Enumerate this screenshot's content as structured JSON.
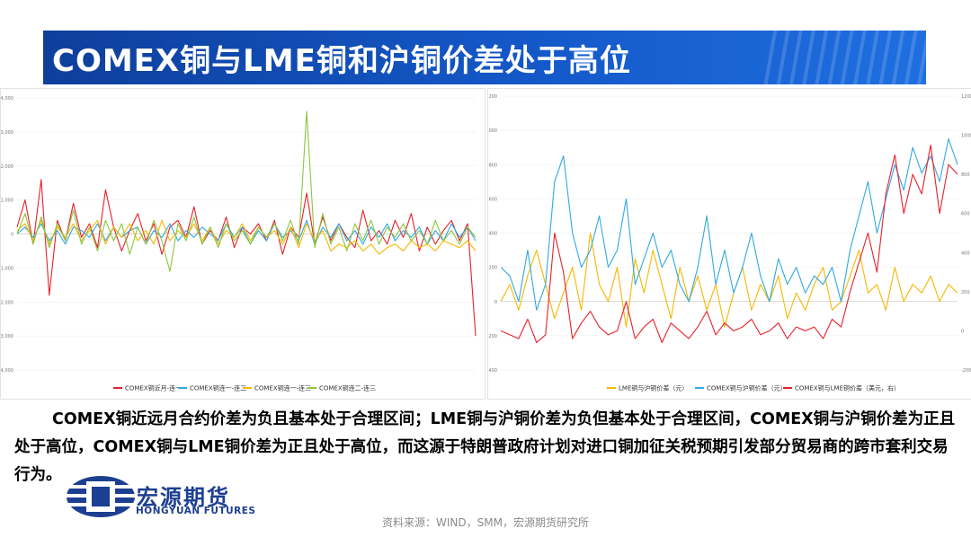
{
  "title": "COMEX铜与LME铜和沪铜价差处于高位",
  "body_text": "COMEX铜近远月合约价差为负且基本处于合理区间；LME铜与沪铜价差为负但基本处于合理区间，COMEX铜与沪铜价差为正且处于高位，COMEX铜与LME铜价差为正且处于高位，而这源于特朗普政府计划对进口铜加征关税预期引发部分贸易商的跨市套利交易行为。",
  "logo": {
    "name": "宏源期货",
    "english": "HONGYUAN FUTURES"
  },
  "source": "资料来源：WIND，SMM，宏源期货研究所",
  "colors": {
    "red": "#e8202a",
    "blue": "#2fa9e1",
    "orange": "#f5b800",
    "green": "#8cc63f",
    "banner": "#1458c8"
  },
  "chart_data": [
    {
      "type": "line",
      "ylim": [
        -4000,
        4000
      ],
      "yticks": [
        "4,000",
        "3,000",
        "2,000",
        "1,000",
        "0",
        "-1,000",
        "-2,000",
        "-3,000",
        "-4,000"
      ],
      "series": [
        {
          "name": "COMEX铜近月-连一",
          "color": "#e8202a",
          "values": [
            200,
            1000,
            -300,
            1600,
            -1800,
            400,
            -200,
            900,
            -100,
            300,
            -400,
            1300,
            200,
            -500,
            100,
            600,
            -200,
            300,
            -600,
            200,
            400,
            -100,
            800,
            -300,
            100,
            -200,
            500,
            -400,
            200,
            0,
            300,
            -200,
            400,
            -600,
            200,
            -100,
            1200,
            -300,
            500,
            -200,
            300,
            -100,
            -400,
            700,
            -200,
            100,
            -300,
            400,
            -100,
            600,
            -500,
            200,
            -300,
            100,
            400,
            -200,
            300,
            -3000
          ]
        },
        {
          "name": "COMEX铜连一-连二",
          "color": "#2fa9e1",
          "values": [
            0,
            200,
            -100,
            300,
            -200,
            100,
            -300,
            200,
            100,
            -100,
            300,
            -200,
            200,
            -100,
            100,
            200,
            -300,
            100,
            -100,
            300,
            -200,
            100,
            -100,
            200,
            0,
            -200,
            300,
            -100,
            200,
            -300,
            100,
            -200,
            300,
            -100,
            100,
            -200,
            400,
            -300,
            200,
            -100,
            300,
            -200,
            100,
            -300,
            200,
            -100,
            300,
            -200,
            100,
            -100,
            200,
            -300,
            100,
            -200,
            300,
            -100,
            200,
            -200
          ]
        },
        {
          "name": "COMEX铜连一-连三",
          "color": "#f5b800",
          "values": [
            100,
            300,
            -200,
            400,
            -300,
            200,
            -100,
            300,
            -200,
            100,
            400,
            -300,
            200,
            -100,
            300,
            -200,
            100,
            -300,
            400,
            -200,
            100,
            -100,
            300,
            -200,
            200,
            -300,
            100,
            -100,
            300,
            -200,
            200,
            -100,
            100,
            -300,
            200,
            -400,
            300,
            -200,
            100,
            -500,
            -300,
            -400,
            -200,
            -500,
            -300,
            -600,
            -400,
            -300,
            -500,
            -200,
            -400,
            -300,
            -500,
            -200,
            -300,
            -400,
            -200,
            -500
          ]
        },
        {
          "name": "COMEX铜连二-连三",
          "color": "#8cc63f",
          "values": [
            0,
            600,
            -300,
            500,
            -400,
            300,
            -200,
            700,
            -300,
            200,
            -500,
            400,
            -200,
            300,
            -600,
            200,
            -300,
            400,
            -200,
            -1100,
            300,
            -200,
            500,
            -300,
            200,
            -400,
            300,
            -200,
            100,
            -300,
            200,
            -100,
            300,
            -200,
            400,
            -300,
            3600,
            -400,
            600,
            -300,
            200,
            -500,
            300,
            -200,
            400,
            -300,
            200,
            -100,
            300,
            -200,
            100,
            -300,
            400,
            -200,
            100,
            -300,
            200,
            -100
          ]
        }
      ]
    },
    {
      "type": "line",
      "ylim": [
        -400,
        1200
      ],
      "yticks": [
        "1200",
        "1000",
        "800",
        "600",
        "400",
        "200",
        "0",
        "-200",
        "-400"
      ],
      "y2lim": [
        -200,
        1200
      ],
      "y2ticks": [
        "1200",
        "1000",
        "800",
        "600",
        "400",
        "200",
        "0",
        "-200"
      ],
      "series": [
        {
          "name": "LME铜与沪铜价差（元）",
          "color": "#f5b800",
          "axis": "left",
          "values": [
            0,
            100,
            -50,
            150,
            300,
            100,
            -100,
            50,
            200,
            -50,
            400,
            100,
            0,
            200,
            -150,
            250,
            50,
            300,
            100,
            -100,
            200,
            0,
            150,
            -50,
            100,
            -150,
            50,
            200,
            -50,
            100,
            0,
            150,
            -100,
            50,
            -50,
            100,
            200,
            -50,
            0,
            150,
            300,
            50,
            100,
            -50,
            200,
            0,
            100,
            50,
            150,
            0,
            100,
            50
          ]
        },
        {
          "name": "COMEX铜与沪铜价差（元）",
          "color": "#2fa9e1",
          "axis": "left",
          "values": [
            200,
            150,
            0,
            300,
            -50,
            100,
            700,
            850,
            400,
            200,
            300,
            500,
            200,
            300,
            600,
            100,
            250,
            400,
            200,
            300,
            100,
            0,
            200,
            500,
            100,
            300,
            50,
            200,
            400,
            150,
            0,
            250,
            100,
            200,
            50,
            150,
            100,
            200,
            0,
            300,
            500,
            700,
            400,
            600,
            800,
            650,
            900,
            750,
            850,
            700,
            950,
            800
          ]
        },
        {
          "name": "COMEX铜与LME铜价差（美元，右）",
          "color": "#e8202a",
          "axis": "right",
          "values": [
            0,
            -20,
            -40,
            60,
            -60,
            -20,
            500,
            300,
            -40,
            40,
            100,
            20,
            -20,
            0,
            150,
            -40,
            20,
            60,
            -60,
            40,
            0,
            -40,
            20,
            100,
            -20,
            40,
            0,
            20,
            60,
            -20,
            0,
            40,
            -40,
            20,
            0,
            20,
            -40,
            60,
            20,
            200,
            350,
            500,
            300,
            700,
            900,
            600,
            800,
            700,
            950,
            600,
            850,
            800
          ]
        }
      ]
    }
  ]
}
